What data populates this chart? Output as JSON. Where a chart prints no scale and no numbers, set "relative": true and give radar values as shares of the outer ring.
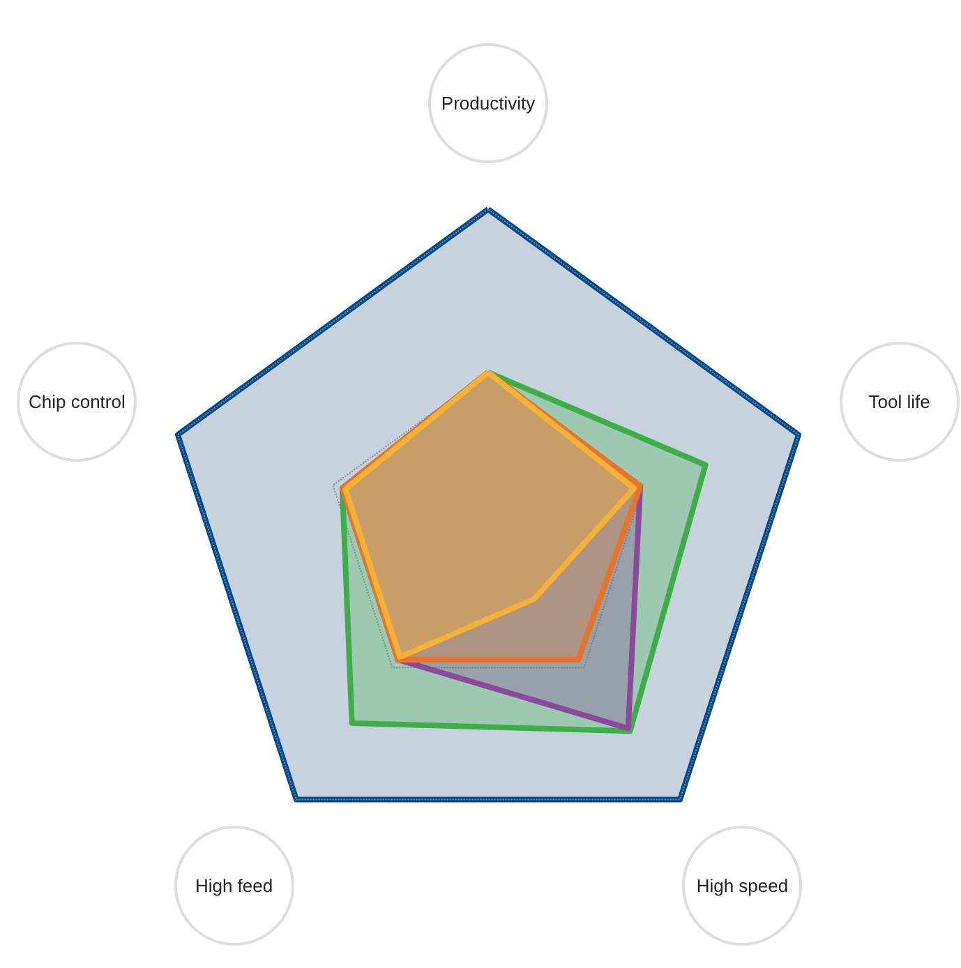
{
  "chart_data": {
    "type": "radar",
    "relative": true,
    "categories": [
      "Productivity",
      "Tool life",
      "High speed",
      "High feed",
      "Chip control"
    ],
    "series": [
      {
        "color": "#3fae49",
        "values": [
          0.5,
          0.7,
          0.74,
          0.71,
          0.47
        ]
      },
      {
        "color": "#8b4a9c",
        "values": [
          0.5,
          0.49,
          0.73,
          0.47,
          0.47
        ]
      },
      {
        "color": "#e8732a",
        "values": [
          0.5,
          0.49,
          0.47,
          0.47,
          0.47
        ]
      },
      {
        "color": "#f5b335",
        "values": [
          0.5,
          0.47,
          0.24,
          0.46,
          0.46
        ]
      }
    ]
  }
}
